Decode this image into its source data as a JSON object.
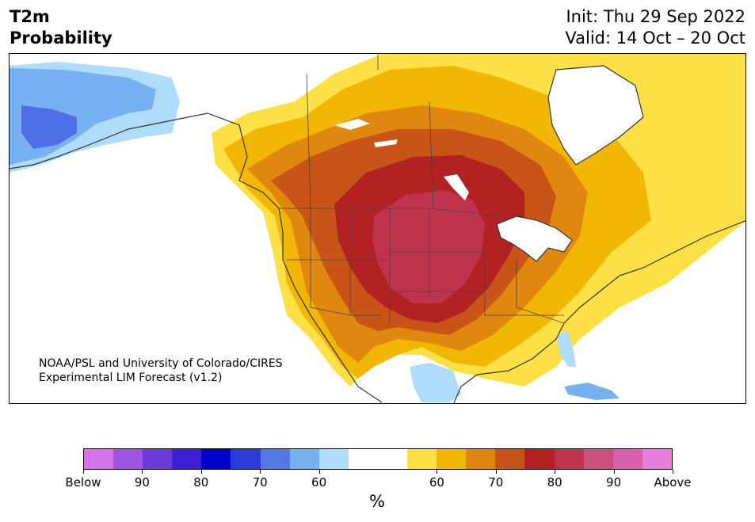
{
  "header": {
    "title_line1": "T2m",
    "title_line2": "Probability",
    "init": "Init: Thu 29 Sep 2022",
    "valid": "Valid: 14 Oct – 20 Oct"
  },
  "credit": {
    "line1": "NOAA/PSL and University of Colorado/CIRES",
    "line2": "Experimental LIM Forecast (v1.2)"
  },
  "colorbar": {
    "unit_label": "%",
    "colors": [
      "#d473e8",
      "#9b55e0",
      "#6a3ad6",
      "#3e1fd4",
      "#0000cc",
      "#2a3bd8",
      "#5577e6",
      "#78b1f2",
      "#aedcfa",
      "#ffffff",
      "#ffffff",
      "#ffe047",
      "#f2b705",
      "#e0870f",
      "#c85418",
      "#b22222",
      "#c0334d",
      "#cc4f7e",
      "#d95fac",
      "#e97ddc"
    ],
    "tick_labels": [
      "Below",
      "90",
      "80",
      "70",
      "60",
      "60",
      "70",
      "80",
      "90",
      "Above"
    ]
  },
  "map": {
    "regions": {
      "alaska_cold_core": "#4f6fe8",
      "alaska_cold_mid": "#78b1f2",
      "alaska_cold_edge": "#aedcfa",
      "warm_60": "#ffe047",
      "warm_65": "#f2b705",
      "warm_70": "#e0870f",
      "warm_75": "#c85418",
      "warm_80": "#b22222",
      "warm_85": "#c0334d",
      "florida_cool": "#aedcfa"
    }
  }
}
